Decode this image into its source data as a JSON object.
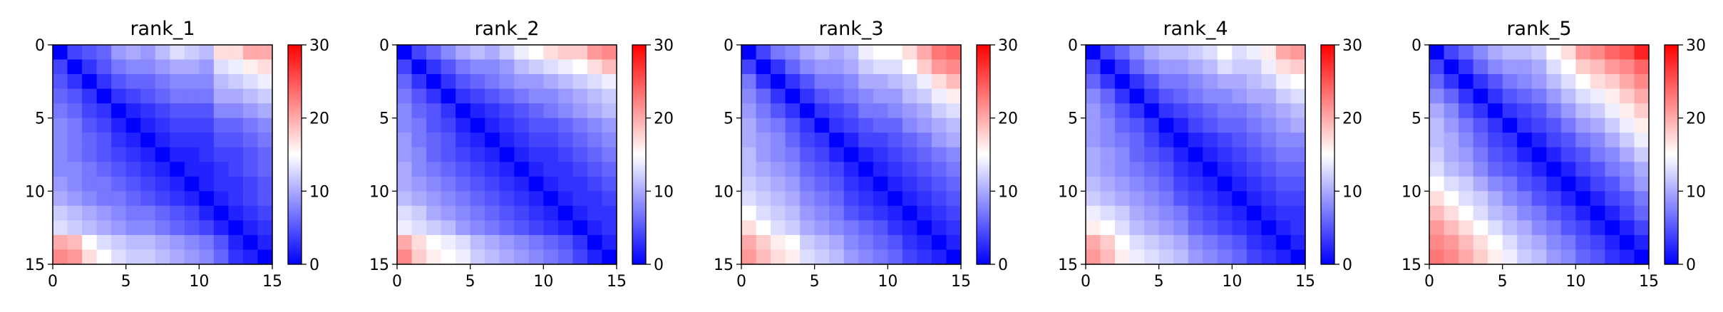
{
  "chart_data": [
    {
      "type": "heatmap",
      "title": "rank_1",
      "xlabel": "",
      "ylabel": "",
      "x_ticks": [
        "0",
        "5",
        "10",
        "15"
      ],
      "y_ticks": [
        "0",
        "5",
        "10",
        "15"
      ],
      "grid": false,
      "colormap": "bwr",
      "colorbar": {
        "min": 0,
        "max": 30,
        "ticks": [
          "0",
          "10",
          "20",
          "30"
        ]
      },
      "matrix": [
        [
          0,
          4,
          5,
          6,
          9,
          10,
          9,
          11,
          13,
          12,
          11,
          17,
          17,
          20,
          20
        ],
        [
          4,
          0,
          3,
          5,
          7,
          8,
          8,
          9,
          10,
          10,
          9,
          13,
          14,
          16,
          17
        ],
        [
          5,
          3,
          0,
          3,
          5,
          6,
          6,
          7,
          8,
          8,
          8,
          11,
          12,
          13,
          14
        ],
        [
          6,
          5,
          3,
          0,
          3,
          4,
          5,
          6,
          7,
          7,
          7,
          10,
          10,
          11,
          12
        ],
        [
          7,
          6,
          4,
          3,
          0,
          2,
          3,
          4,
          5,
          5,
          5,
          8,
          8,
          9,
          10
        ],
        [
          8,
          7,
          5,
          4,
          2,
          0,
          2,
          3,
          4,
          4,
          4,
          6,
          6,
          7,
          8
        ],
        [
          8,
          7,
          6,
          5,
          3,
          2,
          0,
          2,
          3,
          3,
          3,
          5,
          5,
          6,
          7
        ],
        [
          8,
          7,
          6,
          5,
          4,
          3,
          2,
          0,
          2,
          2,
          3,
          4,
          4,
          5,
          6
        ],
        [
          8,
          8,
          7,
          6,
          5,
          4,
          3,
          2,
          0,
          2,
          2,
          3,
          4,
          5,
          6
        ],
        [
          9,
          8,
          7,
          7,
          6,
          5,
          4,
          3,
          2,
          0,
          2,
          3,
          3,
          4,
          5
        ],
        [
          10,
          9,
          8,
          7,
          7,
          6,
          5,
          4,
          3,
          2,
          0,
          2,
          3,
          4,
          5
        ],
        [
          12,
          11,
          10,
          9,
          8,
          7,
          7,
          6,
          5,
          4,
          2,
          0,
          2,
          3,
          4
        ],
        [
          13,
          12,
          11,
          10,
          9,
          8,
          8,
          7,
          6,
          5,
          4,
          2,
          0,
          2,
          3
        ],
        [
          20,
          19,
          15,
          13,
          12,
          11,
          11,
          10,
          9,
          8,
          7,
          5,
          2,
          0,
          2
        ],
        [
          22,
          21,
          17,
          15,
          13,
          12,
          12,
          11,
          10,
          9,
          8,
          6,
          3,
          2,
          0
        ]
      ]
    },
    {
      "type": "heatmap",
      "title": "rank_2",
      "xlabel": "",
      "ylabel": "",
      "x_ticks": [
        "0",
        "5",
        "10",
        "15"
      ],
      "y_ticks": [
        "0",
        "5",
        "10",
        "15"
      ],
      "grid": false,
      "colormap": "bwr",
      "colorbar": {
        "min": 0,
        "max": 30,
        "ticks": [
          "0",
          "10",
          "20",
          "30"
        ]
      },
      "matrix": [
        [
          0,
          4,
          6,
          8,
          10,
          11,
          10,
          12,
          14,
          15,
          17,
          18,
          18,
          21,
          22
        ],
        [
          4,
          0,
          3,
          5,
          7,
          8,
          8,
          9,
          11,
          12,
          13,
          14,
          15,
          17,
          19
        ],
        [
          6,
          3,
          0,
          3,
          5,
          6,
          7,
          8,
          9,
          9,
          10,
          11,
          12,
          13,
          14
        ],
        [
          7,
          5,
          3,
          0,
          3,
          4,
          5,
          6,
          7,
          8,
          8,
          9,
          10,
          11,
          12
        ],
        [
          8,
          6,
          5,
          3,
          0,
          2,
          3,
          4,
          5,
          6,
          7,
          8,
          9,
          10,
          11
        ],
        [
          8,
          7,
          5,
          4,
          2,
          0,
          2,
          3,
          4,
          5,
          5,
          6,
          7,
          8,
          9
        ],
        [
          9,
          7,
          6,
          5,
          3,
          2,
          0,
          2,
          3,
          4,
          4,
          5,
          6,
          7,
          8
        ],
        [
          9,
          8,
          6,
          5,
          4,
          3,
          2,
          0,
          2,
          3,
          3,
          4,
          5,
          6,
          7
        ],
        [
          10,
          8,
          7,
          6,
          5,
          4,
          3,
          2,
          0,
          2,
          3,
          3,
          4,
          5,
          6
        ],
        [
          10,
          9,
          8,
          7,
          6,
          5,
          4,
          3,
          2,
          0,
          2,
          3,
          3,
          4,
          5
        ],
        [
          11,
          10,
          9,
          8,
          7,
          6,
          5,
          4,
          3,
          2,
          0,
          2,
          3,
          3,
          4
        ],
        [
          13,
          12,
          10,
          9,
          8,
          7,
          6,
          5,
          4,
          3,
          2,
          0,
          2,
          3,
          3
        ],
        [
          14,
          13,
          12,
          11,
          9,
          8,
          7,
          6,
          5,
          4,
          3,
          2,
          0,
          2,
          3
        ],
        [
          20,
          17,
          15,
          14,
          13,
          11,
          10,
          9,
          8,
          7,
          6,
          5,
          3,
          0,
          2
        ],
        [
          22,
          18,
          16,
          15,
          14,
          12,
          11,
          10,
          9,
          8,
          7,
          6,
          4,
          2,
          0
        ]
      ]
    },
    {
      "type": "heatmap",
      "title": "rank_3",
      "xlabel": "",
      "ylabel": "",
      "x_ticks": [
        "0",
        "5",
        "10",
        "15"
      ],
      "y_ticks": [
        "0",
        "5",
        "10",
        "15"
      ],
      "grid": false,
      "colormap": "bwr",
      "colorbar": {
        "min": 0,
        "max": 30,
        "ticks": [
          "0",
          "10",
          "20",
          "30"
        ]
      },
      "matrix": [
        [
          0,
          4,
          7,
          8,
          10,
          11,
          10,
          11,
          14,
          15,
          15,
          17,
          20,
          23,
          24
        ],
        [
          4,
          0,
          3,
          6,
          8,
          9,
          9,
          10,
          12,
          13,
          13,
          15,
          18,
          21,
          22
        ],
        [
          7,
          3,
          0,
          3,
          5,
          7,
          7,
          8,
          10,
          10,
          11,
          12,
          14,
          17,
          19
        ],
        [
          8,
          6,
          3,
          0,
          3,
          5,
          6,
          7,
          8,
          9,
          9,
          11,
          12,
          14,
          16
        ],
        [
          9,
          7,
          5,
          3,
          0,
          3,
          4,
          5,
          7,
          7,
          8,
          9,
          10,
          12,
          13
        ],
        [
          10,
          8,
          7,
          5,
          3,
          0,
          3,
          4,
          5,
          6,
          6,
          8,
          9,
          10,
          11
        ],
        [
          10,
          9,
          8,
          6,
          4,
          3,
          0,
          2,
          4,
          4,
          5,
          6,
          7,
          9,
          10
        ],
        [
          11,
          9,
          8,
          7,
          5,
          4,
          2,
          0,
          2,
          3,
          4,
          5,
          6,
          7,
          8
        ],
        [
          11,
          10,
          9,
          8,
          6,
          5,
          4,
          2,
          0,
          2,
          3,
          4,
          5,
          6,
          7
        ],
        [
          12,
          11,
          10,
          9,
          7,
          6,
          5,
          3,
          2,
          0,
          2,
          3,
          4,
          5,
          6
        ],
        [
          13,
          12,
          11,
          10,
          8,
          7,
          6,
          4,
          3,
          2,
          0,
          2,
          3,
          4,
          5
        ],
        [
          15,
          13,
          12,
          11,
          9,
          8,
          7,
          5,
          4,
          3,
          2,
          0,
          2,
          3,
          4
        ],
        [
          17,
          15,
          13,
          12,
          10,
          9,
          8,
          7,
          6,
          5,
          3,
          2,
          0,
          2,
          3
        ],
        [
          20,
          18,
          16,
          15,
          12,
          11,
          10,
          8,
          7,
          6,
          5,
          3,
          2,
          0,
          2
        ],
        [
          21,
          19,
          17,
          16,
          13,
          12,
          11,
          9,
          8,
          7,
          6,
          4,
          3,
          2,
          0
        ]
      ]
    },
    {
      "type": "heatmap",
      "title": "rank_4",
      "xlabel": "",
      "ylabel": "",
      "x_ticks": [
        "0",
        "5",
        "10",
        "15"
      ],
      "y_ticks": [
        "0",
        "5",
        "10",
        "15"
      ],
      "grid": false,
      "colormap": "bwr",
      "colorbar": {
        "min": 0,
        "max": 30,
        "ticks": [
          "0",
          "10",
          "20",
          "30"
        ]
      },
      "matrix": [
        [
          0,
          4,
          6,
          8,
          10,
          11,
          11,
          12,
          13,
          15,
          13,
          14,
          16,
          20,
          21
        ],
        [
          4,
          0,
          3,
          6,
          8,
          9,
          9,
          10,
          11,
          13,
          12,
          12,
          14,
          17,
          18
        ],
        [
          6,
          3,
          0,
          3,
          5,
          7,
          7,
          8,
          9,
          10,
          10,
          11,
          12,
          14,
          15
        ],
        [
          8,
          6,
          3,
          0,
          3,
          5,
          6,
          7,
          8,
          8,
          9,
          10,
          10,
          12,
          13
        ],
        [
          9,
          7,
          5,
          3,
          0,
          3,
          4,
          5,
          6,
          7,
          7,
          8,
          9,
          10,
          11
        ],
        [
          9,
          8,
          6,
          5,
          3,
          0,
          2,
          4,
          5,
          6,
          6,
          7,
          8,
          9,
          10
        ],
        [
          9,
          8,
          7,
          6,
          4,
          2,
          0,
          2,
          3,
          4,
          5,
          6,
          7,
          8,
          8
        ],
        [
          10,
          9,
          8,
          6,
          5,
          4,
          2,
          0,
          2,
          3,
          4,
          5,
          6,
          7,
          7
        ],
        [
          10,
          9,
          8,
          7,
          6,
          5,
          3,
          2,
          0,
          2,
          3,
          4,
          5,
          6,
          6
        ],
        [
          11,
          10,
          9,
          8,
          7,
          6,
          4,
          3,
          2,
          0,
          2,
          3,
          4,
          5,
          5
        ],
        [
          12,
          11,
          10,
          9,
          8,
          7,
          5,
          4,
          3,
          2,
          0,
          2,
          3,
          4,
          4
        ],
        [
          14,
          13,
          12,
          10,
          9,
          8,
          7,
          5,
          4,
          3,
          2,
          0,
          2,
          3,
          3
        ],
        [
          16,
          15,
          13,
          11,
          10,
          9,
          8,
          6,
          5,
          4,
          3,
          2,
          0,
          2,
          3
        ],
        [
          20,
          18,
          15,
          13,
          12,
          11,
          10,
          8,
          7,
          6,
          5,
          3,
          2,
          0,
          2
        ],
        [
          21,
          19,
          16,
          14,
          13,
          12,
          11,
          9,
          8,
          7,
          6,
          4,
          3,
          2,
          0
        ]
      ]
    },
    {
      "type": "heatmap",
      "title": "rank_5",
      "xlabel": "",
      "ylabel": "",
      "x_ticks": [
        "0",
        "5",
        "10",
        "15"
      ],
      "y_ticks": [
        "0",
        "5",
        "10",
        "15"
      ],
      "grid": false,
      "colormap": "bwr",
      "colorbar": {
        "min": 0,
        "max": 30,
        "ticks": [
          "0",
          "10",
          "20",
          "30"
        ]
      },
      "matrix": [
        [
          0,
          4,
          6,
          8,
          10,
          11,
          11,
          12,
          15,
          17,
          21,
          22,
          24,
          25,
          28
        ],
        [
          4,
          0,
          3,
          6,
          8,
          9,
          9,
          10,
          13,
          15,
          18,
          19,
          21,
          22,
          24
        ],
        [
          6,
          3,
          0,
          3,
          5,
          7,
          8,
          9,
          11,
          13,
          15,
          17,
          18,
          20,
          22
        ],
        [
          8,
          6,
          3,
          0,
          3,
          5,
          6,
          7,
          9,
          11,
          13,
          14,
          16,
          18,
          20
        ],
        [
          10,
          8,
          5,
          3,
          0,
          3,
          4,
          5,
          7,
          9,
          11,
          12,
          14,
          16,
          18
        ],
        [
          11,
          9,
          7,
          5,
          3,
          0,
          3,
          4,
          5,
          7,
          9,
          10,
          12,
          14,
          16
        ],
        [
          11,
          10,
          8,
          6,
          4,
          3,
          0,
          2,
          4,
          5,
          7,
          8,
          10,
          12,
          14
        ],
        [
          12,
          10,
          9,
          7,
          5,
          4,
          2,
          0,
          2,
          4,
          5,
          7,
          8,
          10,
          12
        ],
        [
          13,
          11,
          10,
          8,
          6,
          5,
          4,
          2,
          0,
          2,
          4,
          5,
          7,
          8,
          10
        ],
        [
          15,
          13,
          12,
          10,
          8,
          7,
          5,
          4,
          2,
          0,
          2,
          4,
          5,
          7,
          9
        ],
        [
          17,
          15,
          13,
          12,
          10,
          8,
          7,
          5,
          4,
          2,
          0,
          2,
          4,
          5,
          7
        ],
        [
          19,
          17,
          15,
          13,
          11,
          10,
          8,
          7,
          5,
          4,
          2,
          0,
          2,
          4,
          6
        ],
        [
          21,
          19,
          17,
          15,
          13,
          11,
          10,
          8,
          7,
          5,
          4,
          2,
          0,
          2,
          4
        ],
        [
          22,
          21,
          19,
          17,
          15,
          13,
          11,
          10,
          8,
          7,
          5,
          4,
          2,
          0,
          2
        ],
        [
          23,
          22,
          20,
          18,
          16,
          14,
          12,
          11,
          9,
          8,
          6,
          5,
          3,
          2,
          0
        ]
      ]
    }
  ]
}
